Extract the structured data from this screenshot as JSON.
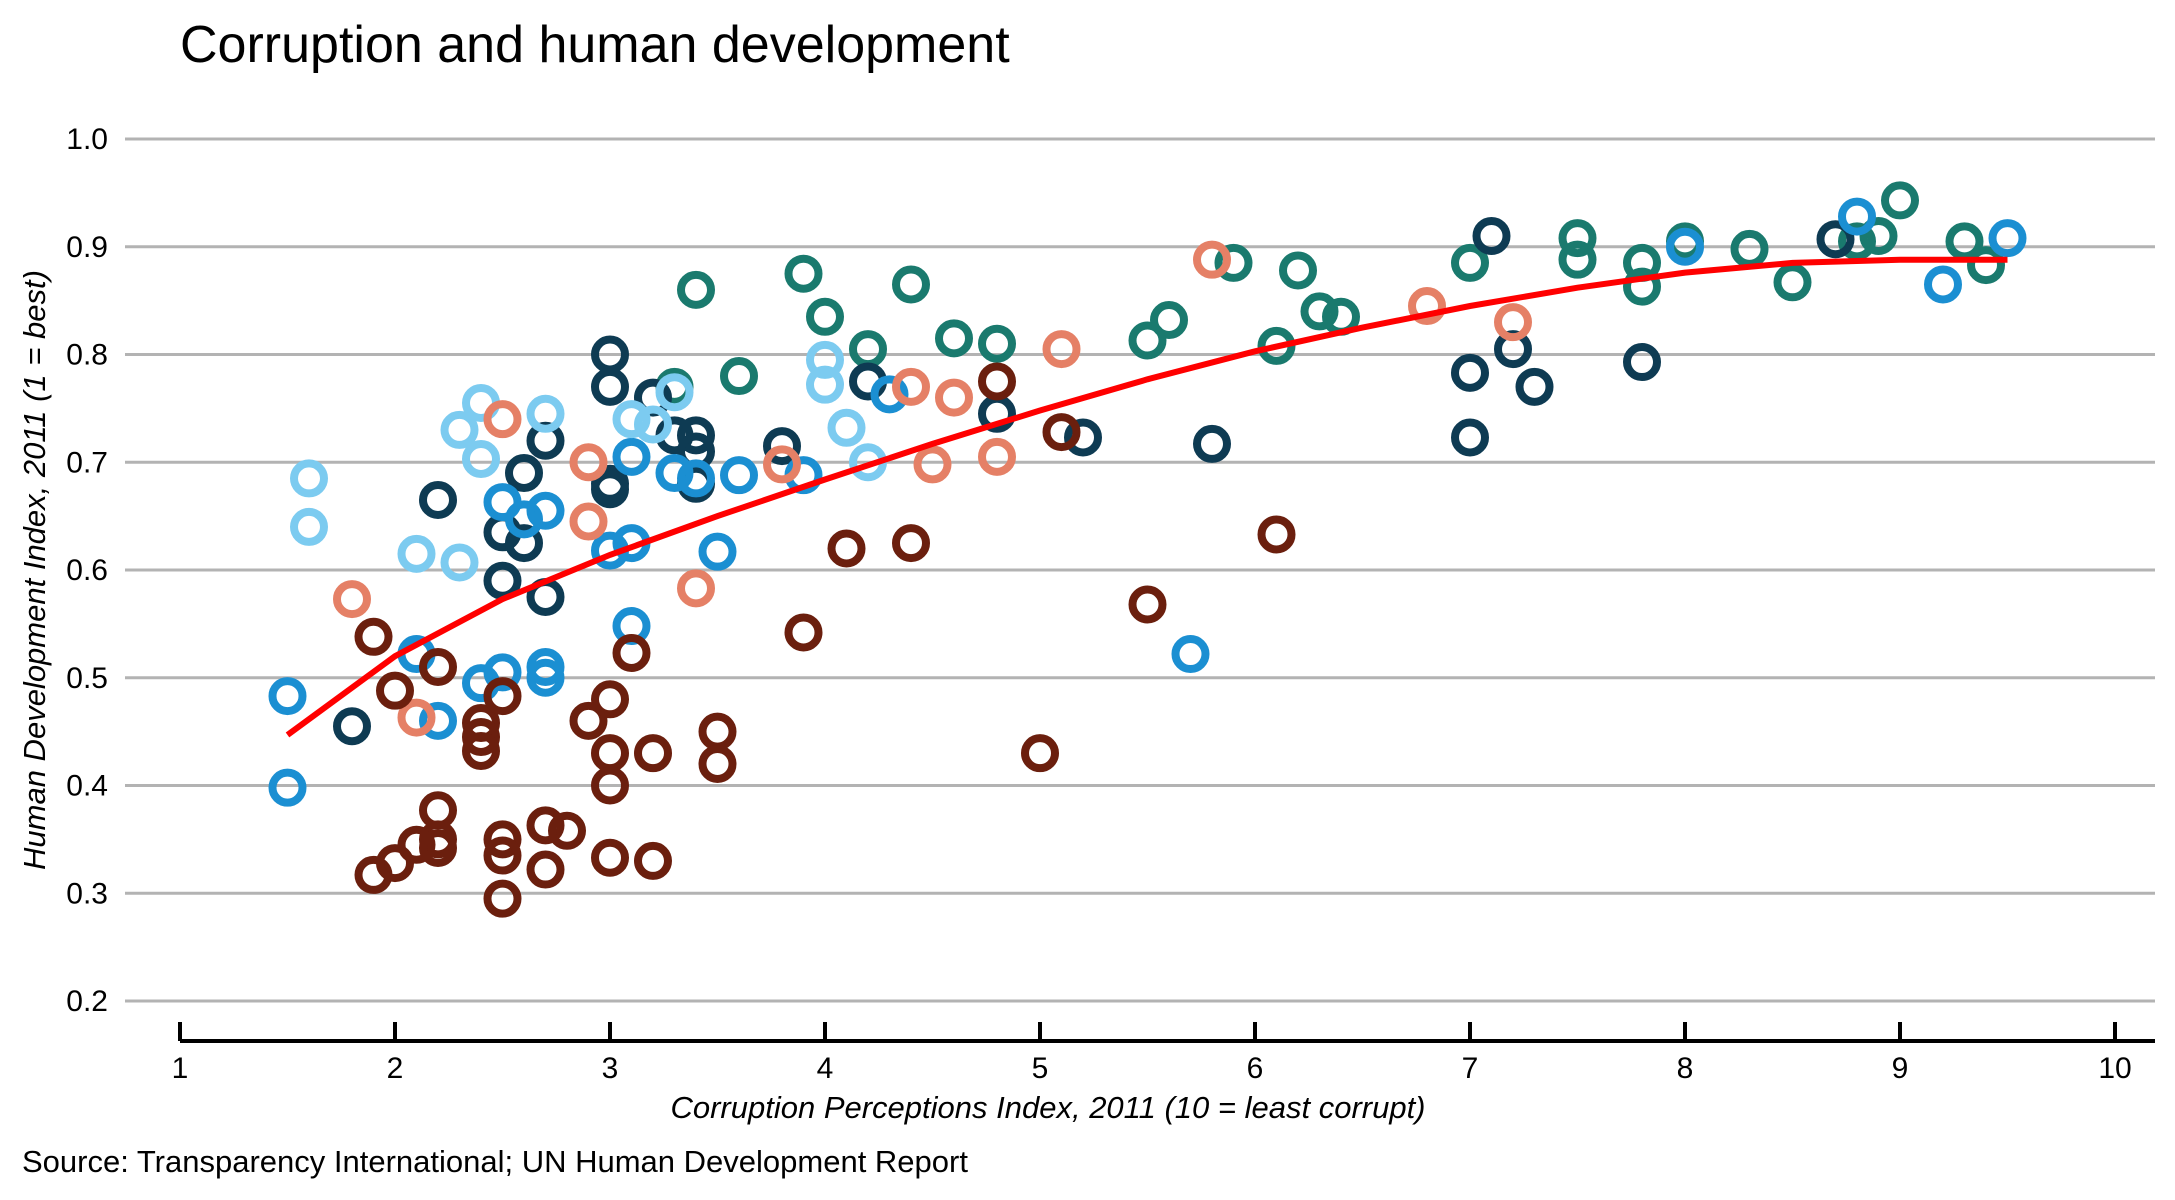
{
  "chart_data": {
    "type": "scatter",
    "title": "Corruption and human development",
    "xlabel": "Corruption Perceptions Index, 2011 (10 = least corrupt)",
    "ylabel": "Human Development Index, 2011 (1 = best)",
    "source": "Source: Transparency International; UN Human Development Report",
    "xlim": [
      1,
      10
    ],
    "ylim": [
      0.2,
      1.0
    ],
    "x_ticks": [
      1,
      2,
      3,
      4,
      5,
      6,
      7,
      8,
      9,
      10
    ],
    "x_tick_labels": [
      "1",
      "2",
      "3",
      "4",
      "5",
      "6",
      "7",
      "8",
      "9",
      "10"
    ],
    "y_ticks": [
      0.2,
      0.3,
      0.4,
      0.5,
      0.6,
      0.7,
      0.8,
      0.9,
      1.0
    ],
    "y_tick_labels": [
      "0.2",
      "0.3",
      "0.4",
      "0.5",
      "0.6",
      "0.7",
      "0.8",
      "0.9",
      "1.0"
    ],
    "grid": "horizontal",
    "legend": "none",
    "series": [
      {
        "color": "#1a7a6e",
        "points": [
          [
            3.3,
            0.77
          ],
          [
            3.4,
            0.86
          ],
          [
            3.6,
            0.78
          ],
          [
            3.9,
            0.875
          ],
          [
            4.0,
            0.835
          ],
          [
            4.2,
            0.805
          ],
          [
            4.4,
            0.865
          ],
          [
            4.6,
            0.815
          ],
          [
            4.8,
            0.81
          ],
          [
            5.5,
            0.813
          ],
          [
            5.6,
            0.832
          ],
          [
            5.9,
            0.885
          ],
          [
            6.1,
            0.808
          ],
          [
            6.2,
            0.878
          ],
          [
            6.3,
            0.84
          ],
          [
            6.4,
            0.835
          ],
          [
            7.0,
            0.885
          ],
          [
            7.5,
            0.908
          ],
          [
            7.5,
            0.888
          ],
          [
            7.8,
            0.885
          ],
          [
            7.8,
            0.863
          ],
          [
            8.0,
            0.905
          ],
          [
            8.3,
            0.898
          ],
          [
            8.5,
            0.867
          ],
          [
            8.8,
            0.905
          ],
          [
            8.9,
            0.91
          ],
          [
            9.0,
            0.943
          ],
          [
            9.3,
            0.905
          ],
          [
            9.4,
            0.883
          ]
        ]
      },
      {
        "color": "#0e3b53",
        "points": [
          [
            1.8,
            0.455
          ],
          [
            2.2,
            0.665
          ],
          [
            2.5,
            0.635
          ],
          [
            2.5,
            0.59
          ],
          [
            2.6,
            0.69
          ],
          [
            2.6,
            0.625
          ],
          [
            2.7,
            0.72
          ],
          [
            2.7,
            0.575
          ],
          [
            3.0,
            0.8
          ],
          [
            3.0,
            0.77
          ],
          [
            3.0,
            0.68
          ],
          [
            3.0,
            0.675
          ],
          [
            3.2,
            0.76
          ],
          [
            3.3,
            0.725
          ],
          [
            3.4,
            0.725
          ],
          [
            3.4,
            0.71
          ],
          [
            3.4,
            0.68
          ],
          [
            3.8,
            0.715
          ],
          [
            4.2,
            0.775
          ],
          [
            4.8,
            0.745
          ],
          [
            5.2,
            0.723
          ],
          [
            5.8,
            0.717
          ],
          [
            7.0,
            0.783
          ],
          [
            7.0,
            0.723
          ],
          [
            7.1,
            0.91
          ],
          [
            7.2,
            0.805
          ],
          [
            7.3,
            0.77
          ],
          [
            7.8,
            0.793
          ],
          [
            8.7,
            0.907
          ]
        ]
      },
      {
        "color": "#1b8fd2",
        "points": [
          [
            1.5,
            0.483
          ],
          [
            1.5,
            0.398
          ],
          [
            2.1,
            0.522
          ],
          [
            2.2,
            0.46
          ],
          [
            2.4,
            0.495
          ],
          [
            2.5,
            0.663
          ],
          [
            2.5,
            0.505
          ],
          [
            2.6,
            0.647
          ],
          [
            2.7,
            0.655
          ],
          [
            2.7,
            0.51
          ],
          [
            2.7,
            0.5
          ],
          [
            3.0,
            0.618
          ],
          [
            3.1,
            0.705
          ],
          [
            3.1,
            0.625
          ],
          [
            3.1,
            0.548
          ],
          [
            3.3,
            0.69
          ],
          [
            3.4,
            0.685
          ],
          [
            3.5,
            0.617
          ],
          [
            3.6,
            0.688
          ],
          [
            3.9,
            0.688
          ],
          [
            4.3,
            0.763
          ],
          [
            5.7,
            0.522
          ],
          [
            8.0,
            0.9
          ],
          [
            8.8,
            0.928
          ],
          [
            9.2,
            0.865
          ],
          [
            9.5,
            0.908
          ]
        ]
      },
      {
        "color": "#7ccbf0",
        "points": [
          [
            1.6,
            0.685
          ],
          [
            1.6,
            0.64
          ],
          [
            2.1,
            0.615
          ],
          [
            2.3,
            0.73
          ],
          [
            2.3,
            0.607
          ],
          [
            2.4,
            0.755
          ],
          [
            2.4,
            0.703
          ],
          [
            2.7,
            0.745
          ],
          [
            3.1,
            0.74
          ],
          [
            3.2,
            0.735
          ],
          [
            3.3,
            0.765
          ],
          [
            4.0,
            0.795
          ],
          [
            4.0,
            0.772
          ],
          [
            4.1,
            0.732
          ],
          [
            4.2,
            0.7
          ]
        ]
      },
      {
        "color": "#e58066",
        "points": [
          [
            1.8,
            0.573
          ],
          [
            2.1,
            0.463
          ],
          [
            2.5,
            0.74
          ],
          [
            2.9,
            0.7
          ],
          [
            2.9,
            0.645
          ],
          [
            3.4,
            0.583
          ],
          [
            3.8,
            0.698
          ],
          [
            4.4,
            0.77
          ],
          [
            4.5,
            0.698
          ],
          [
            4.6,
            0.76
          ],
          [
            4.8,
            0.705
          ],
          [
            5.1,
            0.805
          ],
          [
            5.8,
            0.888
          ],
          [
            6.8,
            0.845
          ],
          [
            7.2,
            0.83
          ]
        ]
      },
      {
        "color": "#6b1f0e",
        "points": [
          [
            1.9,
            0.538
          ],
          [
            1.9,
            0.317
          ],
          [
            2.0,
            0.488
          ],
          [
            2.0,
            0.328
          ],
          [
            2.1,
            0.345
          ],
          [
            2.2,
            0.51
          ],
          [
            2.2,
            0.377
          ],
          [
            2.2,
            0.35
          ],
          [
            2.2,
            0.342
          ],
          [
            2.4,
            0.458
          ],
          [
            2.4,
            0.445
          ],
          [
            2.4,
            0.432
          ],
          [
            2.5,
            0.483
          ],
          [
            2.5,
            0.35
          ],
          [
            2.5,
            0.335
          ],
          [
            2.5,
            0.295
          ],
          [
            2.7,
            0.363
          ],
          [
            2.7,
            0.322
          ],
          [
            2.8,
            0.358
          ],
          [
            2.9,
            0.46
          ],
          [
            3.0,
            0.48
          ],
          [
            3.0,
            0.43
          ],
          [
            3.0,
            0.4
          ],
          [
            3.0,
            0.333
          ],
          [
            3.1,
            0.523
          ],
          [
            3.2,
            0.43
          ],
          [
            3.2,
            0.33
          ],
          [
            3.5,
            0.45
          ],
          [
            3.5,
            0.42
          ],
          [
            3.9,
            0.542
          ],
          [
            4.1,
            0.62
          ],
          [
            4.4,
            0.625
          ],
          [
            4.8,
            0.775
          ],
          [
            5.0,
            0.43
          ],
          [
            5.1,
            0.728
          ],
          [
            5.5,
            0.568
          ],
          [
            6.1,
            0.633
          ]
        ]
      }
    ],
    "trendline": {
      "color": "#ff0000",
      "x": [
        1.5,
        2.0,
        2.5,
        3.0,
        3.5,
        4.0,
        4.5,
        5.0,
        5.5,
        6.0,
        6.5,
        7.0,
        7.5,
        8.0,
        8.5,
        9.0,
        9.5
      ],
      "y": [
        0.447,
        0.52,
        0.573,
        0.614,
        0.65,
        0.684,
        0.717,
        0.748,
        0.777,
        0.803,
        0.825,
        0.845,
        0.862,
        0.876,
        0.885,
        0.888,
        0.888
      ]
    }
  }
}
